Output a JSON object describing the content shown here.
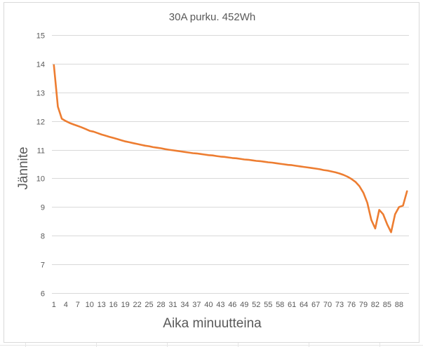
{
  "chart_data": {
    "type": "line",
    "title": "30A purku. 452Wh",
    "xlabel": "Aika minuutteina",
    "ylabel": "Jännite",
    "ylim": [
      6,
      15
    ],
    "yticks": [
      6,
      7,
      8,
      9,
      10,
      11,
      12,
      13,
      14,
      15
    ],
    "xticks": [
      1,
      4,
      7,
      10,
      13,
      16,
      19,
      22,
      25,
      28,
      31,
      34,
      37,
      40,
      43,
      46,
      49,
      52,
      55,
      58,
      61,
      64,
      67,
      70,
      73,
      76,
      79,
      82,
      85,
      88
    ],
    "grid": true,
    "legend": "none",
    "series_color": "#ED7D31",
    "grid_color": "#d9d9d9",
    "series": [
      {
        "x": [
          1,
          2,
          3,
          4,
          5,
          6,
          7,
          8,
          9,
          10,
          11,
          12,
          13,
          14,
          15,
          16,
          17,
          18,
          19,
          20,
          21,
          22,
          23,
          24,
          25,
          26,
          27,
          28,
          29,
          30,
          31,
          32,
          33,
          34,
          35,
          36,
          37,
          38,
          39,
          40,
          41,
          42,
          43,
          44,
          45,
          46,
          47,
          48,
          49,
          50,
          51,
          52,
          53,
          54,
          55,
          56,
          57,
          58,
          59,
          60,
          61,
          62,
          63,
          64,
          65,
          66,
          67,
          68,
          69,
          70,
          71,
          72,
          73,
          74,
          75,
          76,
          77,
          78,
          79,
          80,
          81,
          82,
          83,
          84,
          85,
          86,
          87,
          88,
          89,
          90
        ],
        "values": [
          13.95,
          12.5,
          12.08,
          12.0,
          11.93,
          11.88,
          11.83,
          11.78,
          11.72,
          11.66,
          11.63,
          11.58,
          11.53,
          11.49,
          11.45,
          11.41,
          11.37,
          11.33,
          11.29,
          11.26,
          11.23,
          11.2,
          11.17,
          11.14,
          11.12,
          11.09,
          11.07,
          11.05,
          11.02,
          11.0,
          10.98,
          10.96,
          10.94,
          10.92,
          10.9,
          10.88,
          10.87,
          10.85,
          10.83,
          10.81,
          10.8,
          10.78,
          10.76,
          10.75,
          10.73,
          10.71,
          10.7,
          10.68,
          10.66,
          10.65,
          10.63,
          10.61,
          10.6,
          10.58,
          10.56,
          10.55,
          10.53,
          10.51,
          10.49,
          10.47,
          10.46,
          10.44,
          10.42,
          10.4,
          10.38,
          10.36,
          10.34,
          10.32,
          10.29,
          10.27,
          10.24,
          10.21,
          10.17,
          10.12,
          10.06,
          9.98,
          9.88,
          9.73,
          9.5,
          9.15,
          8.55,
          8.25,
          8.9,
          8.75,
          8.4,
          8.12,
          8.75,
          9.0,
          9.05,
          9.55
        ]
      }
    ]
  }
}
